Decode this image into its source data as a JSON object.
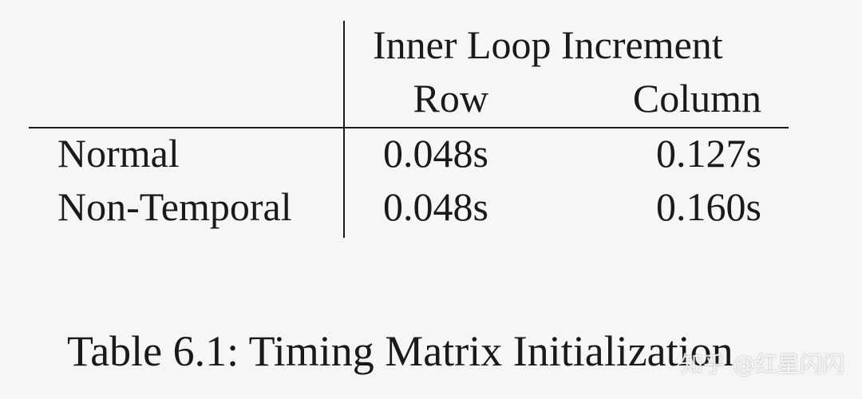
{
  "table": {
    "group_header": "Inner Loop Increment",
    "columns": [
      "Row",
      "Column"
    ],
    "rows": [
      {
        "label": "Normal",
        "row": "0.048s",
        "column": "0.127s"
      },
      {
        "label": "Non-Temporal",
        "row": "0.048s",
        "column": "0.160s"
      }
    ]
  },
  "caption": "Table 6.1: Timing Matrix Initialization",
  "watermark": "知乎 @红星闪闪"
}
